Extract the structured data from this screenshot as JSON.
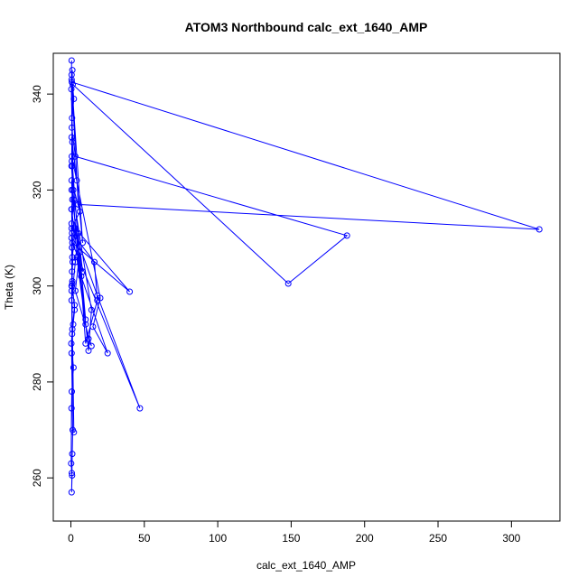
{
  "chart_data": {
    "type": "line",
    "title": "ATOM3 Northbound calc_ext_1640_AMP",
    "xlabel": "calc_ext_1640_AMP",
    "ylabel": "Theta (K)",
    "xlim": [
      -12,
      333
    ],
    "ylim": [
      251,
      348.5
    ],
    "xticks": [
      0,
      50,
      100,
      150,
      200,
      250,
      300
    ],
    "yticks": [
      260,
      280,
      300,
      320,
      340
    ],
    "grid": false,
    "color": "#0000ff",
    "series": [
      {
        "x": [
          0.5,
          0.3,
          1.0,
          0.6,
          1.5,
          0.4,
          2.0,
          0.8,
          1.2,
          0.5,
          2.5,
          1.0,
          0.3,
          1.8,
          0.6,
          0.4,
          0.2,
          0.6,
          0.8,
          0.5,
          0.9,
          1.2,
          0.5,
          1.5,
          2.5,
          1.0,
          0.8,
          0.4,
          1.0,
          0.5,
          6.0,
          0.5,
          0.8,
          1.0,
          0.5,
          3.0,
          5.0,
          8.0,
          4.0,
          10.0,
          12.0,
          14.0,
          3.0,
          6.0,
          10.0,
          0.5,
          0.8,
          16.0,
          18.0,
          10.0,
          0.6,
          20.0,
          15.0,
          25.0,
          7.0,
          0.5,
          12.0,
          14.0,
          2.0,
          0.5,
          18.0,
          47.0,
          1.0,
          40.0,
          3.0,
          0.4,
          1.2,
          148.0,
          188.0,
          3.0,
          0.6,
          0.5,
          2.0,
          0.8,
          1.0,
          0.5,
          4.0,
          8.0,
          0.6,
          319.0,
          5.0,
          0.5,
          1.5,
          3.0,
          1.0,
          0.5,
          0.8,
          2.0,
          0.6,
          1.0
        ],
        "y": [
          347.0,
          341.0,
          330.0,
          326.0,
          320.0,
          316.0,
          312.0,
          308.0,
          305.0,
          300.0,
          296.0,
          291.0,
          288.0,
          283.0,
          278.0,
          274.5,
          263.0,
          261.0,
          260.5,
          257.0,
          265.0,
          270.0,
          286.0,
          292.0,
          295.0,
          300.5,
          303.0,
          310.0,
          318.0,
          322.0,
          315.5,
          312.0,
          308.0,
          301.0,
          297.0,
          305.0,
          311.0,
          303.0,
          306.0,
          292.0,
          289.0,
          287.5,
          299.0,
          307.0,
          293.0,
          316.0,
          311.0,
          305.0,
          297.0,
          288.0,
          327.0,
          297.5,
          291.5,
          286.0,
          302.0,
          320.0,
          286.5,
          295.0,
          318.0,
          313.0,
          298.0,
          274.5,
          309.0,
          298.8,
          312.0,
          325.0,
          342.0,
          300.5,
          310.5,
          327.0,
          333.0,
          344.0,
          339.0,
          335.0,
          325.0,
          331.0,
          322.0,
          309.0,
          342.5,
          311.8,
          317.0,
          343.0,
          320.0,
          312.0,
          306.0,
          299.0,
          290.0,
          269.5,
          300.0,
          345.0
        ]
      }
    ]
  }
}
